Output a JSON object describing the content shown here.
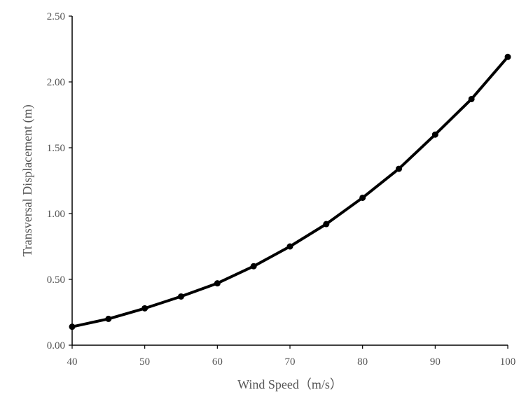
{
  "chart_data": {
    "type": "line",
    "title": "",
    "xlabel": "Wind Speed（m/s）",
    "ylabel": "Transversal Displacement (m)",
    "x": [
      40,
      45,
      50,
      55,
      60,
      65,
      70,
      75,
      80,
      85,
      90,
      95,
      100
    ],
    "series": [
      {
        "values": [
          0.14,
          0.2,
          0.28,
          0.37,
          0.47,
          0.6,
          0.75,
          0.92,
          1.12,
          1.34,
          1.6,
          1.87,
          2.19
        ]
      }
    ],
    "xlim": [
      40,
      100
    ],
    "ylim": [
      0,
      2.5
    ],
    "xticks": [
      40,
      50,
      60,
      70,
      80,
      90,
      100
    ],
    "yticks": [
      "0.00",
      "0.50",
      "1.00",
      "1.50",
      "2.00",
      "2.50"
    ],
    "grid": false,
    "line_color": "#000000"
  }
}
